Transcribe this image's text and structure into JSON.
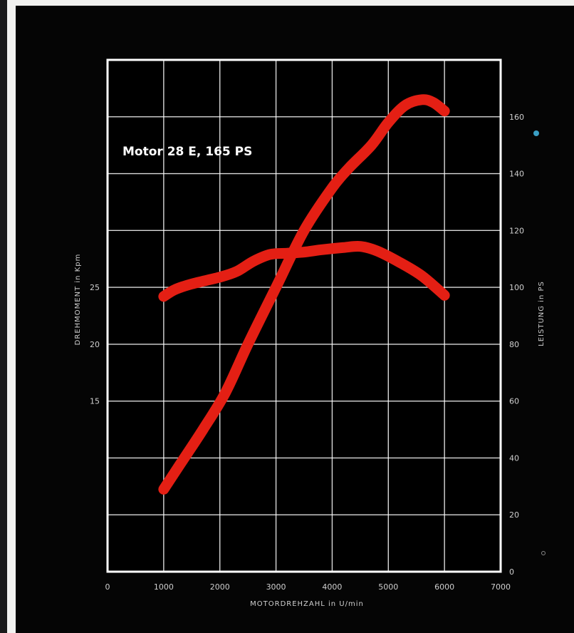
{
  "chart_data": {
    "type": "line",
    "title": "Motor 28 E, 165 PS",
    "xlabel": "MOTORDREHZAHL in U/min",
    "ylabel_left": "DREHMOMENT in Kpm",
    "ylabel_right": "LEISTUNG in PS",
    "xlim": [
      0,
      7000
    ],
    "ylim_right": [
      0,
      180
    ],
    "ylim_left": [
      0,
      45
    ],
    "x_ticks": [
      "0",
      "1000",
      "2000",
      "3000",
      "4000",
      "5000",
      "6000",
      "7000"
    ],
    "left_ticks": [
      {
        "value": 15,
        "label": "15"
      },
      {
        "value": 20,
        "label": "20"
      },
      {
        "value": 25,
        "label": "25"
      }
    ],
    "right_ticks": [
      {
        "value": 0,
        "label": "0"
      },
      {
        "value": 20,
        "label": "20"
      },
      {
        "value": 40,
        "label": "40"
      },
      {
        "value": 60,
        "label": "60"
      },
      {
        "value": 80,
        "label": "80"
      },
      {
        "value": 100,
        "label": "100"
      },
      {
        "value": 120,
        "label": "120"
      },
      {
        "value": 140,
        "label": "140"
      },
      {
        "value": 160,
        "label": "160"
      }
    ],
    "grid": true,
    "series": [
      {
        "axis": "left",
        "x": [
          1000,
          1200,
          1500,
          2000,
          2300,
          2600,
          2900,
          3200,
          3500,
          3800,
          4200,
          4500,
          4800,
          5200,
          5600,
          6000
        ],
        "y": [
          24.2,
          24.8,
          25.3,
          25.9,
          26.4,
          27.3,
          27.9,
          28.0,
          28.1,
          28.3,
          28.5,
          28.6,
          28.2,
          27.2,
          26.0,
          24.3
        ]
      },
      {
        "axis": "right",
        "x": [
          1000,
          1300,
          1700,
          2100,
          2500,
          3000,
          3500,
          4000,
          4300,
          4700,
          5000,
          5300,
          5600,
          5800,
          6000
        ],
        "y": [
          29,
          38,
          50,
          63,
          80,
          100,
          120,
          135,
          142,
          150,
          158,
          164,
          166,
          165,
          162
        ]
      }
    ],
    "colors": {
      "background": "#050505",
      "plot_area": "#000000",
      "grid": "#ffffff",
      "curve": "#e41f14",
      "frame": "#ffffff"
    }
  }
}
